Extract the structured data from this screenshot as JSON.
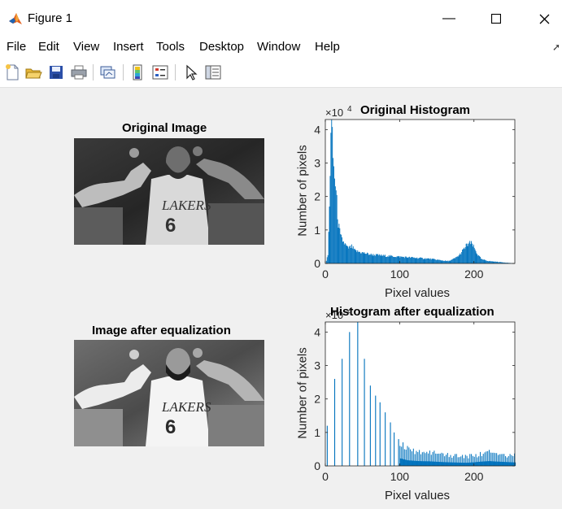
{
  "window": {
    "title": "Figure 1",
    "minimize_glyph": "—",
    "maximize_glyph": "☐",
    "close_glyph": "✕"
  },
  "menu": [
    "File",
    "Edit",
    "View",
    "Insert",
    "Tools",
    "Desktop",
    "Window",
    "Help"
  ],
  "toolbar": [
    "new-figure-icon",
    "open-file-icon",
    "save-icon",
    "print-icon",
    "link-plot-icon",
    "colorbar-icon",
    "legend-icon",
    "pointer-icon",
    "property-inspector-icon"
  ],
  "colors": {
    "bar": "#0072bd",
    "axis": "#262626",
    "figure_bg": "#f0f0f0"
  },
  "panels": {
    "original_image_title": "Original Image",
    "equalized_image_title": "Image after equalization"
  },
  "chart_data": [
    {
      "type": "bar",
      "title": "Original Histogram",
      "xlabel": "Pixel values",
      "ylabel": "Number of pixels",
      "exponent_label": "×10",
      "exponent_power": "4",
      "xlim": [
        0,
        255
      ],
      "ylim": [
        0,
        43000
      ],
      "xticks": [
        "0",
        "100",
        "200"
      ],
      "yticks": [
        "0",
        "1",
        "2",
        "3",
        "4"
      ],
      "profile": [
        [
          0,
          0
        ],
        [
          3,
          2500
        ],
        [
          5,
          16000
        ],
        [
          7,
          41000
        ],
        [
          8,
          44000
        ],
        [
          9,
          36000
        ],
        [
          11,
          28000
        ],
        [
          13,
          24000
        ],
        [
          15,
          18000
        ],
        [
          17,
          12000
        ],
        [
          20,
          8000
        ],
        [
          25,
          6000
        ],
        [
          30,
          4500
        ],
        [
          35,
          5000
        ],
        [
          40,
          3700
        ],
        [
          50,
          3200
        ],
        [
          60,
          2700
        ],
        [
          70,
          2500
        ],
        [
          80,
          2300
        ],
        [
          100,
          2000
        ],
        [
          120,
          1700
        ],
        [
          140,
          1400
        ],
        [
          150,
          1100
        ],
        [
          160,
          800
        ],
        [
          165,
          700
        ],
        [
          170,
          1100
        ],
        [
          175,
          1700
        ],
        [
          180,
          2500
        ],
        [
          185,
          4000
        ],
        [
          190,
          5500
        ],
        [
          193,
          6000
        ],
        [
          197,
          5800
        ],
        [
          200,
          4500
        ],
        [
          205,
          2500
        ],
        [
          210,
          1200
        ],
        [
          220,
          700
        ],
        [
          230,
          500
        ],
        [
          240,
          300
        ],
        [
          250,
          100
        ],
        [
          255,
          0
        ]
      ]
    },
    {
      "type": "bar",
      "title": "Histogram after equalization",
      "xlabel": "Pixel values",
      "ylabel": "Number of pixels",
      "exponent_label": "×10",
      "exponent_power": "4",
      "xlim": [
        0,
        255
      ],
      "ylim": [
        0,
        43000
      ],
      "xticks": [
        "0",
        "100",
        "200"
      ],
      "yticks": [
        "0",
        "1",
        "2",
        "3",
        "4"
      ],
      "spikes": [
        [
          2,
          12000
        ],
        [
          12,
          26000
        ],
        [
          22,
          32000
        ],
        [
          32,
          40000
        ],
        [
          43,
          44000
        ],
        [
          52,
          32000
        ],
        [
          60,
          24000
        ],
        [
          67,
          21000
        ],
        [
          73,
          19000
        ],
        [
          80,
          16000
        ],
        [
          87,
          13000
        ],
        [
          92,
          10000
        ],
        [
          98,
          8000
        ]
      ],
      "profile": [
        [
          100,
          6500
        ],
        [
          110,
          4800
        ],
        [
          120,
          4300
        ],
        [
          130,
          4000
        ],
        [
          140,
          3900
        ],
        [
          150,
          3500
        ],
        [
          160,
          3200
        ],
        [
          170,
          3000
        ],
        [
          180,
          2800
        ],
        [
          190,
          2700
        ],
        [
          200,
          3100
        ],
        [
          210,
          3700
        ],
        [
          220,
          4100
        ],
        [
          230,
          3700
        ],
        [
          240,
          3400
        ],
        [
          250,
          3100
        ],
        [
          255,
          3000
        ]
      ]
    }
  ]
}
